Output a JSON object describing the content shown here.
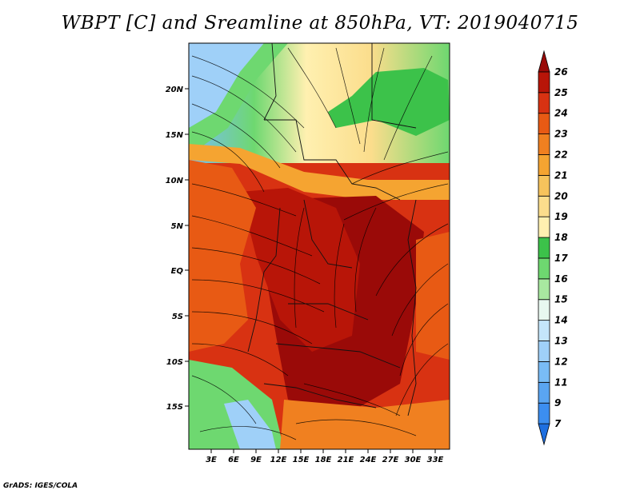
{
  "title": "WBPT [C] and Sreamline at 850hPa, VT: 2019040715",
  "credit": "GrADS: IGES/COLA",
  "map": {
    "variable": "Wet-bulb potential temperature",
    "level": "850hPa",
    "overlay": "Streamlines",
    "lon_labels": [
      "3E",
      "6E",
      "9E",
      "12E",
      "15E",
      "18E",
      "21E",
      "24E",
      "27E",
      "30E",
      "33E"
    ],
    "lat_labels": [
      "20N",
      "15N",
      "10N",
      "5N",
      "EQ",
      "5S",
      "10S",
      "15S"
    ]
  },
  "colorbar": {
    "levels": [
      "7",
      "9",
      "11",
      "12",
      "13",
      "14",
      "15",
      "16",
      "17",
      "18",
      "19",
      "20",
      "21",
      "22",
      "23",
      "24",
      "25",
      "26"
    ],
    "colors": [
      "#1e6fe0",
      "#3c8ef0",
      "#5aa5f2",
      "#79bcf6",
      "#9fd0f8",
      "#c4e6fa",
      "#e8f8f0",
      "#a8e8a0",
      "#6ed870",
      "#3cc24a",
      "#fff0b0",
      "#fbdd8c",
      "#f6c35c",
      "#f5a431",
      "#f08020",
      "#e85a14",
      "#d83212",
      "#b81508",
      "#9a0a08"
    ]
  }
}
